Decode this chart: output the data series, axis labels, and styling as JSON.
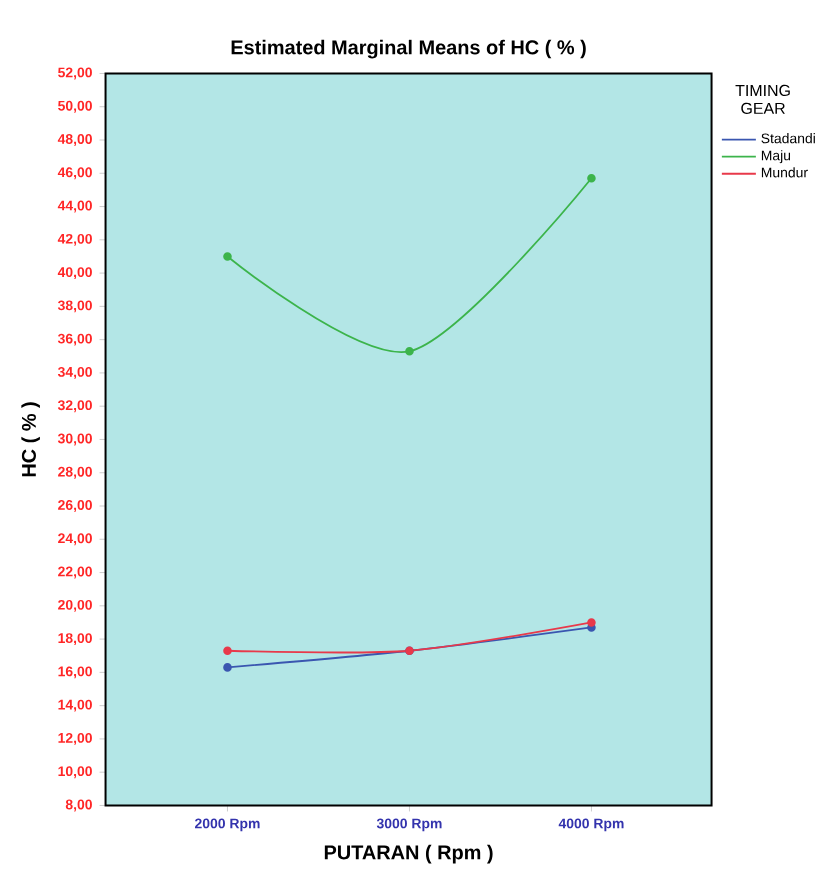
{
  "chart_data": {
    "type": "line",
    "title": "Estimated Marginal Means of HC ( % )",
    "xlabel": "PUTARAN ( Rpm )",
    "ylabel": "HC ( % )",
    "legend_title": "TIMING GEAR",
    "categories": [
      "2000 Rpm",
      "3000 Rpm",
      "4000 Rpm"
    ],
    "series": [
      {
        "name": "Stadandi",
        "color": "#3a56b0",
        "values": [
          16.3,
          17.3,
          18.7
        ]
      },
      {
        "name": "Maju",
        "color": "#3cb44b",
        "values": [
          41.0,
          35.3,
          45.7
        ]
      },
      {
        "name": "Mundur",
        "color": "#e8394a",
        "values": [
          17.3,
          17.3,
          19.0
        ]
      }
    ],
    "ylim": [
      8,
      52
    ],
    "yticks": [
      {
        "value": 8,
        "label": "8,00"
      },
      {
        "value": 10,
        "label": "10,00"
      },
      {
        "value": 12,
        "label": "12,00"
      },
      {
        "value": 14,
        "label": "14,00"
      },
      {
        "value": 16,
        "label": "16,00"
      },
      {
        "value": 18,
        "label": "18,00"
      },
      {
        "value": 20,
        "label": "20,00"
      },
      {
        "value": 22,
        "label": "22,00"
      },
      {
        "value": 24,
        "label": "24,00"
      },
      {
        "value": 26,
        "label": "26,00"
      },
      {
        "value": 28,
        "label": "28,00"
      },
      {
        "value": 30,
        "label": "30,00"
      },
      {
        "value": 32,
        "label": "32,00"
      },
      {
        "value": 34,
        "label": "34,00"
      },
      {
        "value": 36,
        "label": "36,00"
      },
      {
        "value": 38,
        "label": "38,00"
      },
      {
        "value": 40,
        "label": "40,00"
      },
      {
        "value": 42,
        "label": "42,00"
      },
      {
        "value": 44,
        "label": "44,00"
      },
      {
        "value": 46,
        "label": "46,00"
      },
      {
        "value": 48,
        "label": "48,00"
      },
      {
        "value": 50,
        "label": "50,00"
      },
      {
        "value": 52,
        "label": "52,00"
      }
    ],
    "legend": "right",
    "marker": "circle",
    "line_style": "solid"
  }
}
